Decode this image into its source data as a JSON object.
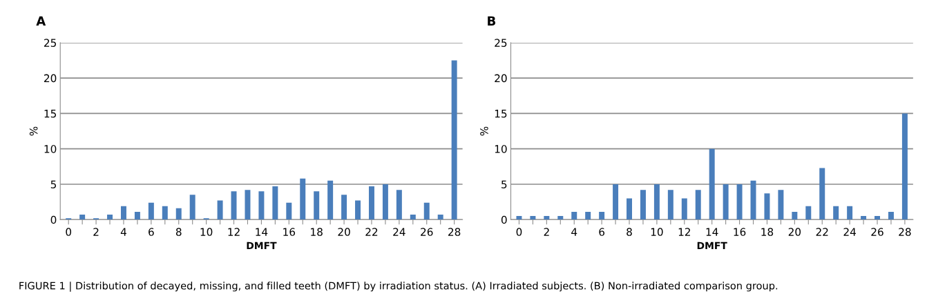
{
  "chart_data": [
    {
      "type": "bar",
      "title": "A",
      "xlabel": "DMFT",
      "ylabel": "%",
      "categories": [
        "0",
        null,
        "2",
        null,
        "4",
        null,
        "6",
        null,
        "8",
        null,
        "10",
        null,
        "12",
        null,
        "14",
        null,
        "16",
        null,
        "18",
        null,
        "20",
        null,
        "22",
        null,
        "24",
        null,
        "26",
        null,
        "28"
      ],
      "series": [
        {
          "color": "#4a7ebb",
          "values": [
            0.2,
            0.7,
            0.2,
            0.7,
            1.9,
            1.1,
            2.4,
            1.9,
            1.6,
            3.5,
            0.2,
            2.7,
            4.0,
            4.2,
            4.0,
            4.7,
            2.4,
            5.8,
            4.0,
            5.5,
            3.5,
            2.7,
            4.7,
            5.0,
            4.2,
            0.7,
            2.4,
            0.7,
            22.5
          ]
        }
      ],
      "ylim": [
        0,
        25
      ],
      "yticks": [
        0,
        5,
        10,
        15,
        20,
        25
      ],
      "grid": "y",
      "annotations": [
        "FIGURE 1 | Distribution of decayed, missing, and filled teeth (DMFT) by irradiation status. (A) Irradiated subjects. (B) Non-irradiated comparison group."
      ]
    },
    {
      "type": "bar",
      "title": "B",
      "xlabel": "DMFT",
      "ylabel": "%",
      "categories": [
        "0",
        null,
        "2",
        null,
        "4",
        null,
        "6",
        null,
        "8",
        null,
        "10",
        null,
        "12",
        null,
        "14",
        null,
        "16",
        null,
        "18",
        null,
        "20",
        null,
        "22",
        null,
        "24",
        null,
        "26",
        null,
        "28"
      ],
      "series": [
        {
          "color": "#4a7ebb",
          "values": [
            0.5,
            0.5,
            0.5,
            0.5,
            1.1,
            1.1,
            1.1,
            5.0,
            3.0,
            4.2,
            5.0,
            4.2,
            3.0,
            4.2,
            10.0,
            5.0,
            5.0,
            5.5,
            3.7,
            4.2,
            1.1,
            1.9,
            7.3,
            1.9,
            1.9,
            0.5,
            0.5,
            1.1,
            15.0
          ]
        }
      ],
      "ylim": [
        0,
        25
      ],
      "yticks": [
        0,
        5,
        10,
        15,
        20,
        25
      ],
      "grid": "y"
    }
  ]
}
